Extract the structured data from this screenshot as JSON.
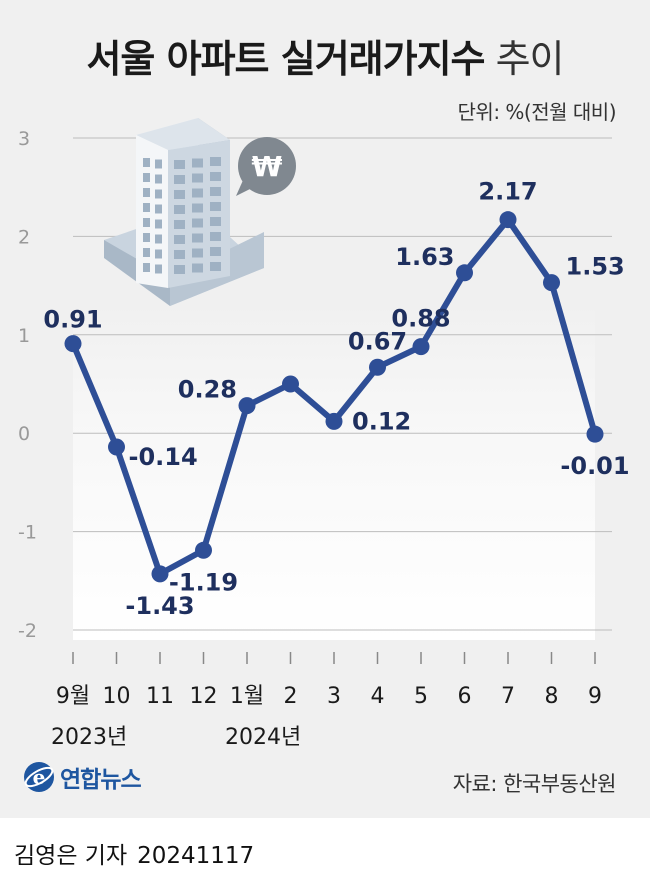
{
  "title_main": "서울 아파트 실거래가지수",
  "title_sub": "추이",
  "unit": "단위: %(전월 대비)",
  "source": "자료: 한국부동산원",
  "logo_text": "연합뉴스",
  "byline_name": "김영은 기자",
  "byline_date": "20241117",
  "colors": {
    "line": "#2e4e96",
    "background": "#f0f0f0",
    "axis_text": "#999999"
  },
  "icons": [
    "apartment-building-icon",
    "won-speech-bubble-icon",
    "yonhap-logo-icon"
  ],
  "chart_data": {
    "type": "line",
    "categories": [
      "9월",
      "10",
      "11",
      "12",
      "1월",
      "2",
      "3",
      "4",
      "5",
      "6",
      "7",
      "8",
      "9"
    ],
    "year_labels": [
      {
        "text": "2023년",
        "category_index": 0
      },
      {
        "text": "2024년",
        "category_index": 4
      }
    ],
    "series": [
      {
        "values": [
          0.91,
          -0.14,
          -1.43,
          -1.19,
          0.28,
          0.5,
          0.12,
          0.67,
          0.88,
          1.63,
          2.17,
          1.53,
          -0.01
        ],
        "labels": [
          "0.91",
          "-0.14",
          "-1.43",
          "-1.19",
          "0.28",
          null,
          "0.12",
          "0.67",
          "0.88",
          "1.63",
          "2.17",
          "1.53",
          "-0.01"
        ]
      }
    ],
    "yticks": [
      3,
      2,
      1,
      0,
      -1,
      -2
    ],
    "ylim": [
      -2,
      3
    ],
    "grid": true,
    "legend": "none"
  }
}
